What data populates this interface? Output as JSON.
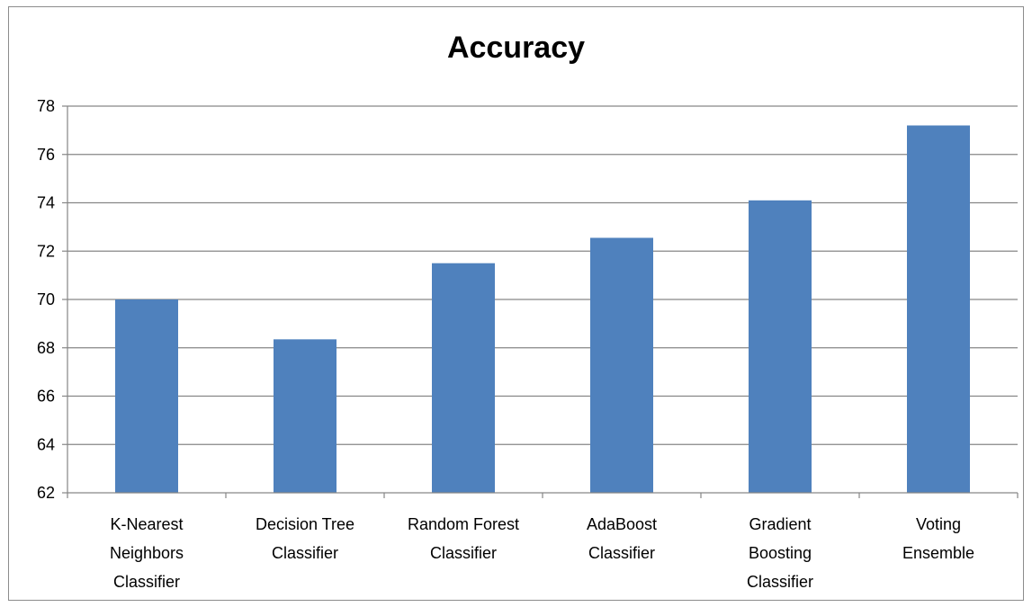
{
  "chart_data": {
    "type": "bar",
    "title": "Accuracy",
    "xlabel": "",
    "ylabel": "",
    "categories": [
      [
        "K-Nearest",
        "Neighbors",
        "Classifier"
      ],
      [
        "Decision Tree",
        "Classifier"
      ],
      [
        "Random Forest",
        "Classifier"
      ],
      [
        "AdaBoost",
        "Classifier"
      ],
      [
        "Gradient",
        "Boosting",
        "Classifier"
      ],
      [
        "Voting",
        "Ensemble"
      ]
    ],
    "values": [
      70.0,
      68.35,
      71.5,
      72.55,
      74.1,
      77.2
    ],
    "ylim": [
      62,
      78
    ],
    "yticks": [
      62,
      64,
      66,
      68,
      70,
      72,
      74,
      76,
      78
    ],
    "grid": true,
    "legend": "none",
    "bar_color": "#4f81bd",
    "grid_color": "#868686"
  }
}
